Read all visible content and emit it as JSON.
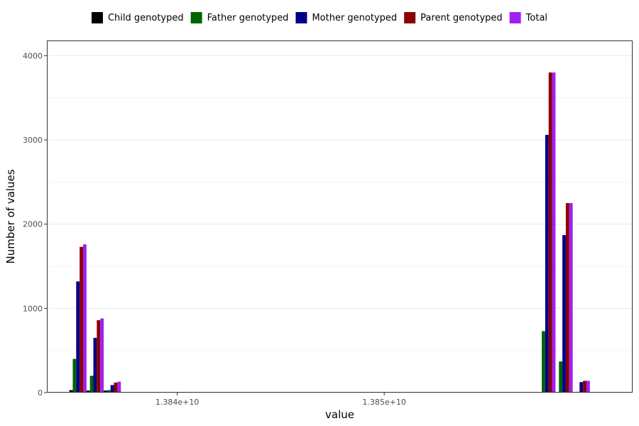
{
  "chart_data": {
    "type": "bar",
    "xlabel": "value",
    "ylabel": "Number of values",
    "xlim": [
      13833700000,
      13862000000
    ],
    "ylim": [
      0,
      4180
    ],
    "x_ticks": [
      13840000000,
      13850000000
    ],
    "x_tick_labels": [
      "1.384e+10",
      "1.385e+10"
    ],
    "y_ticks": [
      0,
      1000,
      2000,
      3000,
      4000
    ],
    "y_tick_labels": [
      "0",
      "1000",
      "2000",
      "3000",
      "4000"
    ],
    "y_minor_ticks": [
      500,
      1500,
      2500,
      3500
    ],
    "grid": true,
    "legend_position": "top",
    "bin_width": 830000,
    "x": [
      13835200000,
      13836030000,
      13836860000,
      13857860000,
      13858690000,
      13859520000
    ],
    "series": [
      {
        "name": "Child genotyped",
        "color": "#000000",
        "values": [
          30,
          25,
          25,
          0,
          0,
          5
        ]
      },
      {
        "name": "Father genotyped",
        "color": "#006400",
        "values": [
          400,
          200,
          30,
          730,
          370,
          10
        ]
      },
      {
        "name": "Mother genotyped",
        "color": "#00008B",
        "values": [
          1320,
          650,
          90,
          3060,
          1870,
          125
        ]
      },
      {
        "name": "Parent genotyped",
        "color": "#8B0000",
        "values": [
          1730,
          860,
          120,
          3800,
          2250,
          140
        ]
      },
      {
        "name": "Total",
        "color": "#A020F0",
        "values": [
          1760,
          880,
          130,
          3800,
          2250,
          140
        ]
      }
    ]
  }
}
